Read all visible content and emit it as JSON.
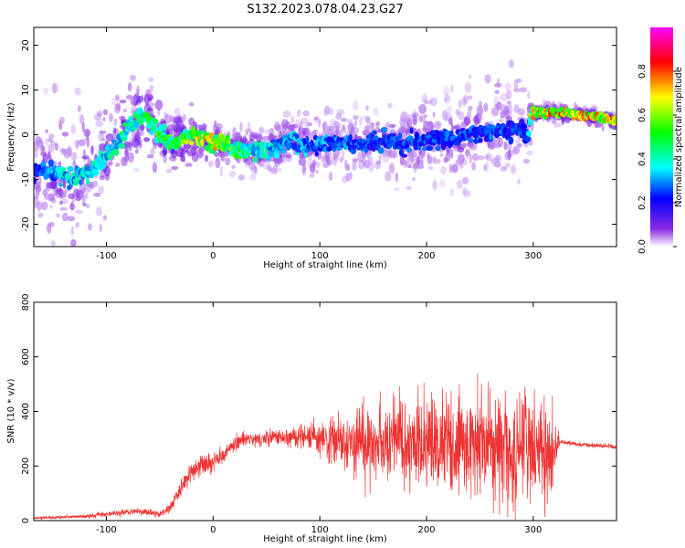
{
  "figure_title": "S132.2023.078.04.23.G27",
  "chart_data": [
    {
      "type": "heatmap",
      "xlabel": "Height of straight line (km)",
      "ylabel": "Frequency (Hz)",
      "xlim": [
        -168,
        378
      ],
      "ylim": [
        -25,
        24
      ],
      "xticks": [
        -100,
        0,
        100,
        200,
        300
      ],
      "yticks": [
        -20,
        -10,
        0,
        10,
        20
      ],
      "colorbar": {
        "label": "Normalized spectral amplitude",
        "range": [
          0,
          1
        ],
        "ticks": [
          0.0,
          0.2,
          0.4,
          0.6,
          0.8
        ],
        "colors": [
          "#ffffff",
          "#8a2be2",
          "#0000ff",
          "#00ffff",
          "#00ff00",
          "#ffff00",
          "#ff0000",
          "#ff00ff"
        ]
      },
      "ridge": {
        "x": [
          -150,
          -135,
          -115,
          -100,
          -85,
          -70,
          -60,
          -50,
          -40,
          -30,
          -20,
          -10,
          0,
          10,
          20,
          30,
          40,
          50,
          60,
          70,
          80,
          90,
          100,
          120,
          140,
          160,
          180,
          200,
          220,
          240,
          260,
          280,
          295,
          300,
          320,
          340,
          360,
          378
        ],
        "y": [
          -8,
          -10,
          -8,
          -5,
          0,
          4,
          3,
          0,
          -2,
          -1,
          0,
          -1,
          -2,
          -2,
          -3,
          -4,
          -3,
          -4,
          -3,
          -1,
          -2,
          -3,
          -2,
          -2,
          -2,
          -1,
          -2,
          -1,
          -1,
          0,
          1,
          1,
          1,
          5,
          5,
          4.5,
          4,
          3
        ]
      },
      "strength": {
        "x": [
          -168,
          -140,
          -100,
          -80,
          -60,
          -40,
          -20,
          0,
          20,
          40,
          60,
          100,
          150,
          200,
          250,
          295,
          300,
          378
        ],
        "v": [
          0.25,
          0.45,
          0.45,
          0.5,
          0.55,
          0.6,
          0.75,
          0.8,
          0.6,
          0.45,
          0.45,
          0.35,
          0.3,
          0.3,
          0.3,
          0.3,
          0.85,
          0.85
        ]
      },
      "scatter_halfwidth": {
        "x": [
          -168,
          -100,
          0,
          50,
          100,
          180,
          250,
          295,
          300,
          378
        ],
        "w": [
          12,
          9,
          3,
          4,
          5,
          7,
          9,
          8,
          1.2,
          1.2
        ]
      }
    },
    {
      "type": "line",
      "xlabel": "Height of straight line (km)",
      "ylabel": "SNR (10 * v/v)",
      "xlim": [
        -168,
        378
      ],
      "ylim": [
        0,
        800
      ],
      "xticks": [
        -100,
        0,
        100,
        200,
        300
      ],
      "yticks": [
        0,
        200,
        400,
        600,
        800
      ],
      "color": "#ee3333",
      "envelope": {
        "x": [
          -168,
          -120,
          -100,
          -70,
          -50,
          -40,
          -30,
          -20,
          -10,
          0,
          10,
          20,
          30,
          40,
          60,
          80,
          100,
          130,
          160,
          200,
          240,
          280,
          300,
          315,
          325,
          340,
          378
        ],
        "mean": [
          10,
          15,
          25,
          35,
          25,
          45,
          120,
          180,
          200,
          215,
          245,
          280,
          295,
          300,
          305,
          305,
          300,
          295,
          295,
          285,
          280,
          270,
          265,
          255,
          290,
          280,
          270
        ],
        "noise": [
          4,
          6,
          10,
          14,
          10,
          18,
          30,
          45,
          45,
          35,
          25,
          25,
          25,
          25,
          30,
          40,
          60,
          90,
          140,
          180,
          190,
          200,
          200,
          180,
          8,
          8,
          8
        ]
      }
    }
  ]
}
